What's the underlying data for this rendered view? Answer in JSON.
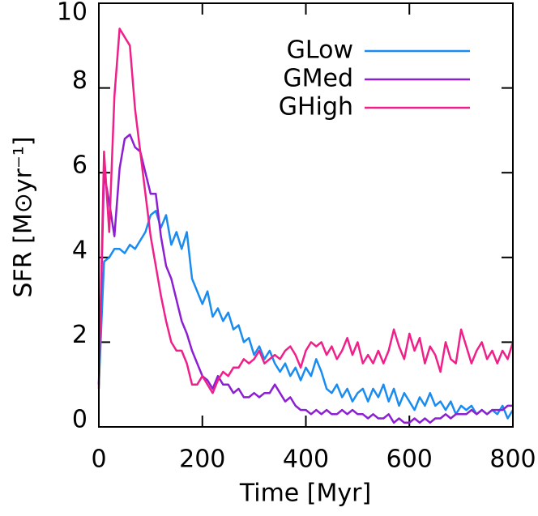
{
  "chart_data": {
    "type": "line",
    "xlabel": "Time [Myr]",
    "ylabel": "SFR [M⊙yr⁻¹]",
    "x": [
      0,
      10,
      20,
      30,
      40,
      50,
      60,
      70,
      80,
      90,
      100,
      110,
      120,
      130,
      140,
      150,
      160,
      170,
      180,
      190,
      200,
      210,
      220,
      230,
      240,
      250,
      260,
      270,
      280,
      290,
      300,
      310,
      320,
      330,
      340,
      350,
      360,
      370,
      380,
      390,
      400,
      410,
      420,
      430,
      440,
      450,
      460,
      470,
      480,
      490,
      500,
      510,
      520,
      530,
      540,
      550,
      560,
      570,
      580,
      590,
      600,
      610,
      620,
      630,
      640,
      650,
      660,
      670,
      680,
      690,
      700,
      710,
      720,
      730,
      740,
      750,
      760,
      770,
      780,
      790,
      800
    ],
    "series": [
      {
        "name": "GLow",
        "color": "#1a8cf0",
        "values": [
          1.0,
          3.9,
          4.0,
          4.2,
          4.2,
          4.1,
          4.3,
          4.2,
          4.4,
          4.6,
          5.0,
          5.1,
          4.7,
          5.0,
          4.3,
          4.6,
          4.2,
          4.6,
          3.5,
          3.2,
          2.9,
          3.2,
          2.6,
          2.8,
          2.5,
          2.7,
          2.3,
          2.4,
          2.0,
          2.1,
          1.7,
          1.9,
          1.6,
          1.8,
          1.5,
          1.3,
          1.5,
          1.2,
          1.4,
          1.1,
          1.4,
          1.2,
          1.6,
          1.3,
          0.9,
          0.8,
          1.0,
          0.7,
          0.9,
          0.6,
          0.8,
          0.9,
          0.6,
          0.9,
          0.7,
          1.0,
          0.6,
          0.9,
          0.5,
          0.8,
          0.6,
          0.4,
          0.7,
          0.5,
          0.8,
          0.5,
          0.6,
          0.4,
          0.6,
          0.3,
          0.5,
          0.4,
          0.5,
          0.3,
          0.4,
          0.3,
          0.4,
          0.3,
          0.5,
          0.2,
          0.4
        ]
      },
      {
        "name": "GMed",
        "color": "#8c1fd2",
        "values": [
          1.0,
          6.0,
          5.3,
          4.5,
          6.1,
          6.8,
          6.9,
          6.6,
          6.5,
          6.0,
          5.5,
          5.5,
          4.5,
          3.8,
          3.5,
          3.0,
          2.5,
          2.2,
          1.8,
          1.5,
          1.2,
          1.1,
          0.9,
          1.2,
          1.0,
          1.0,
          0.8,
          0.9,
          0.7,
          0.7,
          0.8,
          0.7,
          0.8,
          0.8,
          1.0,
          0.8,
          0.6,
          0.7,
          0.5,
          0.4,
          0.4,
          0.3,
          0.4,
          0.3,
          0.4,
          0.3,
          0.3,
          0.4,
          0.3,
          0.4,
          0.3,
          0.3,
          0.2,
          0.3,
          0.2,
          0.2,
          0.3,
          0.1,
          0.2,
          0.1,
          0.1,
          0.2,
          0.1,
          0.2,
          0.1,
          0.2,
          0.2,
          0.3,
          0.2,
          0.3,
          0.3,
          0.3,
          0.4,
          0.3,
          0.4,
          0.3,
          0.4,
          0.4,
          0.4,
          0.5,
          0.5
        ]
      },
      {
        "name": "GHigh",
        "color": "#f0208a",
        "values": [
          0.9,
          6.5,
          4.6,
          7.8,
          9.4,
          9.2,
          9.0,
          7.5,
          6.5,
          5.5,
          4.5,
          3.8,
          3.1,
          2.5,
          2.0,
          1.8,
          1.8,
          1.5,
          1.0,
          1.0,
          1.2,
          1.0,
          0.8,
          1.1,
          1.3,
          1.2,
          1.4,
          1.4,
          1.6,
          1.5,
          1.6,
          1.8,
          1.5,
          1.6,
          1.7,
          1.6,
          1.8,
          1.9,
          1.7,
          1.4,
          1.8,
          2.0,
          1.9,
          2.0,
          1.7,
          1.9,
          1.6,
          1.8,
          2.1,
          1.7,
          2.0,
          1.5,
          1.7,
          1.5,
          1.8,
          1.5,
          1.8,
          2.3,
          1.9,
          1.6,
          2.2,
          1.8,
          2.1,
          1.5,
          1.9,
          1.7,
          1.3,
          2.0,
          1.6,
          1.5,
          2.3,
          1.9,
          1.5,
          1.8,
          2.0,
          1.6,
          1.8,
          1.5,
          1.8,
          1.6,
          2.0
        ]
      }
    ],
    "xlim": [
      0,
      800
    ],
    "xticks": [
      0,
      200,
      400,
      600,
      800
    ],
    "ylim": [
      0,
      10
    ],
    "yticks": [
      0,
      2,
      4,
      6,
      8,
      10
    ],
    "legend": "top-right"
  }
}
